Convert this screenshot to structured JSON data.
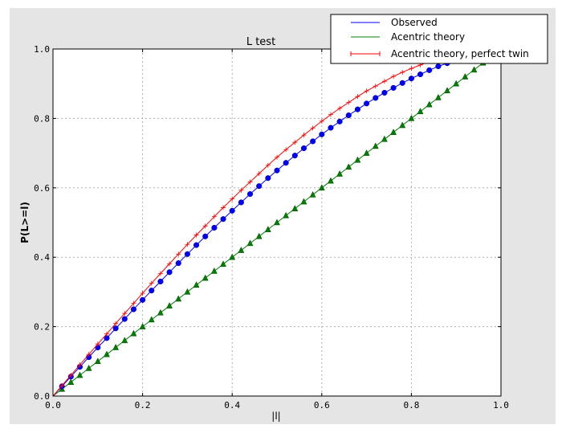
{
  "chart_data": {
    "type": "line",
    "title": "L test",
    "xlabel": "|l|",
    "ylabel": "P(L>=l)",
    "xlim": [
      0,
      1
    ],
    "ylim": [
      0,
      1
    ],
    "grid": true,
    "legend_position": "top-right",
    "x_ticks": [
      "0.0",
      "0.2",
      "0.4",
      "0.6",
      "0.8",
      "1.0"
    ],
    "y_ticks": [
      "0.0",
      "0.2",
      "0.4",
      "0.6",
      "0.8",
      "1.0"
    ],
    "x": [
      0,
      0.02,
      0.04,
      0.06,
      0.08,
      0.1,
      0.12,
      0.14,
      0.16,
      0.18,
      0.2,
      0.22,
      0.24,
      0.26,
      0.28,
      0.3,
      0.32,
      0.34,
      0.36,
      0.38,
      0.4,
      0.42,
      0.44,
      0.46,
      0.48,
      0.5,
      0.52,
      0.54,
      0.56,
      0.58,
      0.6,
      0.62,
      0.64,
      0.66,
      0.68,
      0.7,
      0.72,
      0.74,
      0.76,
      0.78,
      0.8,
      0.82,
      0.84,
      0.86,
      0.88,
      0.9,
      0.92,
      0.94,
      0.96,
      0.98,
      1.0
    ],
    "series": [
      {
        "name": "Observed",
        "color": "#0000ff",
        "marker": "circle",
        "values": [
          0,
          0.028,
          0.056,
          0.084,
          0.112,
          0.14,
          0.167,
          0.195,
          0.222,
          0.25,
          0.277,
          0.304,
          0.33,
          0.357,
          0.383,
          0.409,
          0.435,
          0.46,
          0.485,
          0.51,
          0.534,
          0.558,
          0.582,
          0.605,
          0.628,
          0.65,
          0.672,
          0.693,
          0.714,
          0.734,
          0.754,
          0.773,
          0.791,
          0.809,
          0.826,
          0.843,
          0.859,
          0.874,
          0.888,
          0.902,
          0.915,
          0.927,
          0.939,
          0.95,
          0.959,
          0.968,
          0.977,
          0.984,
          0.99,
          0.996,
          1.0
        ]
      },
      {
        "name": "Acentric theory",
        "color": "#008000",
        "marker": "triangle",
        "values": [
          0,
          0.02,
          0.04,
          0.06,
          0.08,
          0.1,
          0.12,
          0.14,
          0.16,
          0.18,
          0.2,
          0.22,
          0.24,
          0.26,
          0.28,
          0.3,
          0.32,
          0.34,
          0.36,
          0.38,
          0.4,
          0.42,
          0.44,
          0.46,
          0.48,
          0.5,
          0.52,
          0.54,
          0.56,
          0.58,
          0.6,
          0.62,
          0.64,
          0.66,
          0.68,
          0.7,
          0.72,
          0.74,
          0.76,
          0.78,
          0.8,
          0.82,
          0.84,
          0.86,
          0.88,
          0.9,
          0.92,
          0.94,
          0.96,
          0.98,
          1.0
        ]
      },
      {
        "name": "Acentric theory, perfect twin",
        "color": "#ff0000",
        "marker": "plus",
        "values": [
          0,
          0.03,
          0.06,
          0.09,
          0.12,
          0.15,
          0.179,
          0.209,
          0.238,
          0.267,
          0.296,
          0.325,
          0.353,
          0.381,
          0.409,
          0.437,
          0.464,
          0.49,
          0.517,
          0.543,
          0.568,
          0.593,
          0.617,
          0.641,
          0.665,
          0.688,
          0.71,
          0.731,
          0.752,
          0.772,
          0.792,
          0.811,
          0.829,
          0.846,
          0.863,
          0.879,
          0.893,
          0.907,
          0.921,
          0.933,
          0.944,
          0.954,
          0.964,
          0.972,
          0.979,
          0.986,
          0.991,
          0.995,
          0.998,
          0.999,
          1.0
        ]
      }
    ]
  }
}
